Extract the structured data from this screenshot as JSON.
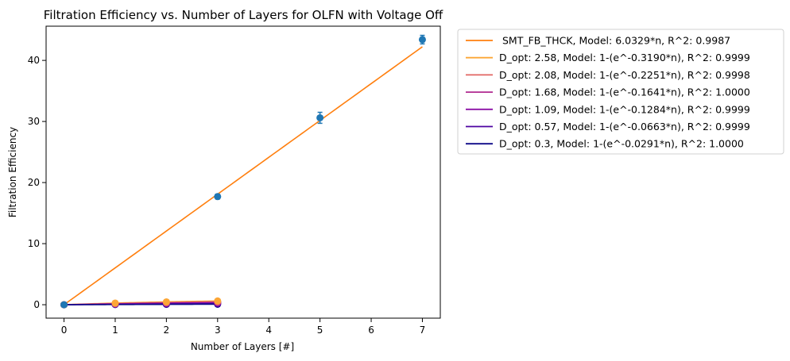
{
  "chart_data": {
    "type": "line",
    "title": "Filtration Efficiency vs. Number of Layers for OLFN with Voltage Off",
    "xlabel": "Number of Layers [#]",
    "ylabel": "Filtration Efficiency",
    "xlim": [
      -0.35,
      7.35
    ],
    "ylim": [
      -2.2,
      45.6
    ],
    "xticks": [
      0,
      1,
      2,
      3,
      4,
      5,
      6,
      7
    ],
    "yticks": [
      0,
      10,
      20,
      30,
      40
    ],
    "grid": false,
    "legend_placement": "outside-right",
    "series": [
      {
        "name": " SMT_FB_THCK, Model: 6.0329*n, R^2: 0.9987",
        "color": "#ff7f0e",
        "model": "linear",
        "k": 6.0329,
        "fit_x": [
          0,
          7
        ],
        "points": {
          "x": [
            0,
            3,
            5,
            7
          ],
          "y": [
            0.0,
            17.7,
            30.6,
            43.4
          ],
          "err": [
            0.2,
            0.4,
            0.9,
            0.7
          ],
          "color": "#1f77b4"
        }
      },
      {
        "name": "D_opt: 2.58, Model: 1-(e^-0.3190*n), R^2: 0.9999",
        "color": "#fca636",
        "model": "exp",
        "k": 0.319,
        "fit_x": [
          0,
          3
        ],
        "points": {
          "x": [
            0,
            1,
            2,
            3
          ],
          "y": [
            0.0,
            0.27,
            0.47,
            0.62
          ],
          "err": [
            0,
            0,
            0,
            0
          ],
          "color": "#fca636"
        }
      },
      {
        "name": "D_opt: 2.08, Model: 1-(e^-0.2251*n), R^2: 0.9998",
        "color": "#e16462",
        "model": "exp",
        "k": 0.2251,
        "fit_x": [
          0,
          3
        ],
        "points": {
          "x": [
            0,
            1,
            2,
            3
          ],
          "y": [
            0.0,
            0.2,
            0.36,
            0.49
          ],
          "err": [
            0,
            0,
            0,
            0
          ],
          "color": "#e16462"
        }
      },
      {
        "name": "D_opt: 1.68, Model: 1-(e^-0.1641*n), R^2: 1.0000",
        "color": "#b12a90",
        "model": "exp",
        "k": 0.1641,
        "fit_x": [
          0,
          3
        ],
        "points": {
          "x": [
            0,
            1,
            2,
            3
          ],
          "y": [
            0.0,
            0.15,
            0.28,
            0.39
          ],
          "err": [
            0,
            0,
            0,
            0
          ],
          "color": "#b12a90"
        }
      },
      {
        "name": "D_opt: 1.09, Model: 1-(e^-0.1284*n), R^2: 0.9999",
        "color": "#8b10a5",
        "model": "exp",
        "k": 0.1284,
        "fit_x": [
          0,
          3
        ],
        "points": {
          "x": [
            0,
            1,
            2,
            3
          ],
          "y": [
            0.0,
            0.12,
            0.23,
            0.32
          ],
          "err": [
            0,
            0,
            0,
            0
          ],
          "color": "#8b10a5"
        }
      },
      {
        "name": "D_opt: 0.57, Model: 1-(e^-0.0663*n), R^2: 0.9999",
        "color": "#4c02a1",
        "model": "exp",
        "k": 0.0663,
        "fit_x": [
          0,
          3
        ],
        "points": {
          "x": [
            0,
            1,
            2,
            3
          ],
          "y": [
            0.0,
            0.06,
            0.12,
            0.18
          ],
          "err": [
            0,
            0,
            0,
            0
          ],
          "color": "#4c02a1"
        }
      },
      {
        "name": "D_opt: 0.3, Model: 1-(e^-0.0291*n), R^2: 1.0000",
        "color": "#0d0887",
        "model": "exp",
        "k": 0.0291,
        "fit_x": [
          0,
          3
        ],
        "points": {
          "x": [
            0,
            1,
            2,
            3
          ],
          "y": [
            0.0,
            0.03,
            0.06,
            0.08
          ],
          "err": [
            0,
            0,
            0,
            0
          ],
          "color": "#0d0887"
        }
      }
    ]
  }
}
